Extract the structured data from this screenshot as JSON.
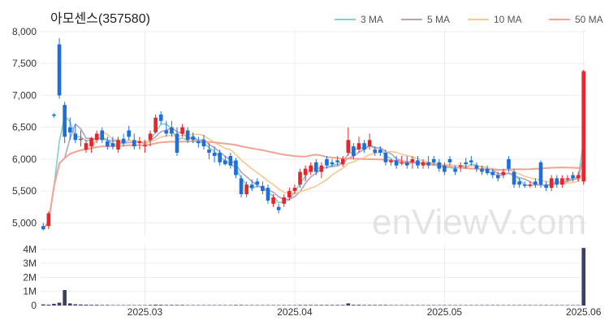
{
  "chart_data": {
    "type": "candlestick",
    "title": "아모센스(357580)",
    "watermark": "enViewV.com",
    "price_axis": {
      "ylim": [
        4800,
        8050
      ],
      "ticks": [
        5000,
        5500,
        6000,
        6500,
        7000,
        7500,
        8000
      ],
      "tick_labels": [
        "5,000",
        "5,500",
        "6,000",
        "6,500",
        "7,000",
        "7,500",
        "8,000"
      ]
    },
    "volume_axis": {
      "ylim": [
        0,
        4400000
      ],
      "ticks": [
        0,
        1000000,
        2000000,
        3000000,
        4000000
      ],
      "tick_labels": [
        "0",
        "1M",
        "2M",
        "3M",
        "4M"
      ]
    },
    "x_ticks": [
      {
        "label": "2025.03",
        "index": 19
      },
      {
        "label": "2025.04",
        "index": 47
      },
      {
        "label": "2025.05",
        "index": 75
      },
      {
        "label": "2025.06",
        "index": 101
      }
    ],
    "colors": {
      "up": "#e8252b",
      "down": "#1e6fd9",
      "volume": "#3a3f63",
      "grid": "#eeeeee"
    },
    "legend": [
      {
        "name": "3 MA",
        "color": "#7fd1c9"
      },
      {
        "name": "5 MA",
        "color": "#b4a0cf"
      },
      {
        "name": "10 MA",
        "color": "#f5c98f"
      },
      {
        "name": "50 MA",
        "color": "#f3a38f"
      }
    ],
    "candles": [
      [
        4950,
        5000,
        4880,
        4900
      ],
      [
        4950,
        5180,
        4900,
        5150
      ],
      [
        6700,
        6720,
        6650,
        6680
      ],
      [
        7800,
        7900,
        6950,
        7000
      ],
      [
        6850,
        6900,
        6250,
        6350
      ],
      [
        6500,
        6650,
        6300,
        6420
      ],
      [
        6400,
        6550,
        6250,
        6300
      ],
      [
        6300,
        6450,
        6200,
        6320
      ],
      [
        6150,
        6300,
        6100,
        6250
      ],
      [
        6200,
        6350,
        6100,
        6330
      ],
      [
        6300,
        6450,
        6250,
        6400
      ],
      [
        6450,
        6500,
        6250,
        6300
      ],
      [
        6280,
        6350,
        6150,
        6200
      ],
      [
        6250,
        6350,
        6150,
        6200
      ],
      [
        6150,
        6350,
        6100,
        6300
      ],
      [
        6320,
        6400,
        6200,
        6250
      ],
      [
        6450,
        6520,
        6300,
        6350
      ],
      [
        6300,
        6400,
        6150,
        6200
      ],
      [
        6250,
        6350,
        6150,
        6280
      ],
      [
        6200,
        6300,
        6100,
        6220
      ],
      [
        6300,
        6450,
        6200,
        6400
      ],
      [
        6420,
        6700,
        6400,
        6650
      ],
      [
        6700,
        6750,
        6550,
        6600
      ],
      [
        6450,
        6600,
        6350,
        6400
      ],
      [
        6500,
        6600,
        6350,
        6400
      ],
      [
        6400,
        6500,
        6050,
        6100
      ],
      [
        6400,
        6550,
        6350,
        6500
      ],
      [
        6450,
        6500,
        6250,
        6300
      ],
      [
        6350,
        6420,
        6250,
        6300
      ],
      [
        6280,
        6350,
        6180,
        6250
      ],
      [
        6300,
        6380,
        6150,
        6200
      ],
      [
        6150,
        6250,
        6000,
        6100
      ],
      [
        6100,
        6200,
        5950,
        6050
      ],
      [
        6100,
        6150,
        5900,
        5950
      ],
      [
        5980,
        6050,
        5900,
        5920
      ],
      [
        6050,
        6100,
        5850,
        5900
      ],
      [
        5980,
        6020,
        5700,
        5750
      ],
      [
        5700,
        5750,
        5400,
        5450
      ],
      [
        5450,
        5650,
        5400,
        5600
      ],
      [
        5600,
        5680,
        5500,
        5550
      ],
      [
        5650,
        5700,
        5550,
        5600
      ],
      [
        5580,
        5650,
        5450,
        5500
      ],
      [
        5550,
        5600,
        5300,
        5350
      ],
      [
        5300,
        5450,
        5250,
        5400
      ],
      [
        5250,
        5300,
        5150,
        5200
      ],
      [
        5300,
        5450,
        5250,
        5400
      ],
      [
        5400,
        5550,
        5350,
        5500
      ],
      [
        5500,
        5600,
        5450,
        5550
      ],
      [
        5600,
        5850,
        5550,
        5800
      ],
      [
        5750,
        5900,
        5650,
        5850
      ],
      [
        5800,
        5950,
        5750,
        5900
      ],
      [
        5950,
        6000,
        5750,
        5800
      ],
      [
        5800,
        5950,
        5700,
        5900
      ],
      [
        6000,
        6050,
        5850,
        5900
      ],
      [
        5950,
        6000,
        5880,
        5920
      ],
      [
        5980,
        6050,
        5900,
        5950
      ],
      [
        5920,
        6050,
        5880,
        6000
      ],
      [
        6100,
        6500,
        6050,
        6300
      ],
      [
        6200,
        6250,
        6000,
        6050
      ],
      [
        6150,
        6350,
        6100,
        6250
      ],
      [
        6250,
        6300,
        6100,
        6150
      ],
      [
        6200,
        6400,
        6150,
        6300
      ],
      [
        6150,
        6200,
        6050,
        6100
      ],
      [
        6150,
        6200,
        6050,
        6100
      ],
      [
        6100,
        6150,
        5900,
        5950
      ],
      [
        5950,
        6000,
        5900,
        5980
      ],
      [
        5980,
        6050,
        5850,
        5900
      ],
      [
        5950,
        6050,
        5900,
        5950
      ],
      [
        5950,
        6050,
        5850,
        5900
      ],
      [
        5950,
        6050,
        5850,
        6000
      ],
      [
        5980,
        6050,
        5850,
        5900
      ],
      [
        5900,
        6000,
        5850,
        5950
      ],
      [
        5950,
        6050,
        5850,
        5900
      ],
      [
        6000,
        6050,
        5900,
        5950
      ],
      [
        5950,
        6000,
        5800,
        5850
      ],
      [
        5900,
        5950,
        5750,
        5800
      ],
      [
        6000,
        6050,
        5900,
        5950
      ],
      [
        5850,
        5900,
        5750,
        5800
      ],
      [
        5900,
        5950,
        5800,
        5900
      ],
      [
        5950,
        6020,
        5850,
        5920
      ],
      [
        5980,
        6050,
        5900,
        5950
      ],
      [
        5900,
        5950,
        5800,
        5850
      ],
      [
        5850,
        5900,
        5750,
        5800
      ],
      [
        5850,
        5900,
        5750,
        5780
      ],
      [
        5800,
        5850,
        5700,
        5750
      ],
      [
        5750,
        5800,
        5650,
        5700
      ],
      [
        5750,
        5850,
        5700,
        5800
      ],
      [
        6000,
        6050,
        5800,
        5850
      ],
      [
        5800,
        5850,
        5550,
        5600
      ],
      [
        5650,
        5700,
        5550,
        5600
      ],
      [
        5600,
        5650,
        5550,
        5580
      ],
      [
        5580,
        5650,
        5550,
        5600
      ],
      [
        5650,
        5700,
        5550,
        5600
      ],
      [
        5950,
        5980,
        5550,
        5600
      ],
      [
        5600,
        5650,
        5500,
        5550
      ],
      [
        5550,
        5750,
        5500,
        5700
      ],
      [
        5700,
        5750,
        5550,
        5600
      ],
      [
        5600,
        5750,
        5550,
        5700
      ],
      [
        5700,
        5750,
        5650,
        5700
      ],
      [
        5750,
        5800,
        5650,
        5700
      ],
      [
        5700,
        5800,
        5650,
        5750
      ],
      [
        5650,
        7400,
        5600,
        7380
      ]
    ],
    "volumes": [
      80000,
      60000,
      120000,
      200000,
      1100000,
      150000,
      90000,
      70000,
      60000,
      50000,
      50000,
      40000,
      40000,
      30000,
      30000,
      30000,
      30000,
      30000,
      30000,
      30000,
      40000,
      60000,
      50000,
      40000,
      40000,
      40000,
      40000,
      30000,
      30000,
      30000,
      30000,
      30000,
      30000,
      30000,
      30000,
      30000,
      40000,
      40000,
      30000,
      30000,
      30000,
      30000,
      30000,
      30000,
      30000,
      30000,
      30000,
      30000,
      40000,
      40000,
      40000,
      40000,
      40000,
      40000,
      40000,
      40000,
      40000,
      150000,
      50000,
      50000,
      40000,
      40000,
      40000,
      40000,
      40000,
      30000,
      30000,
      30000,
      30000,
      30000,
      30000,
      30000,
      30000,
      30000,
      30000,
      30000,
      30000,
      30000,
      30000,
      30000,
      30000,
      30000,
      30000,
      30000,
      30000,
      30000,
      30000,
      30000,
      30000,
      30000,
      30000,
      30000,
      30000,
      30000,
      30000,
      30000,
      30000,
      30000,
      30000,
      30000,
      30000,
      4100000
    ]
  }
}
